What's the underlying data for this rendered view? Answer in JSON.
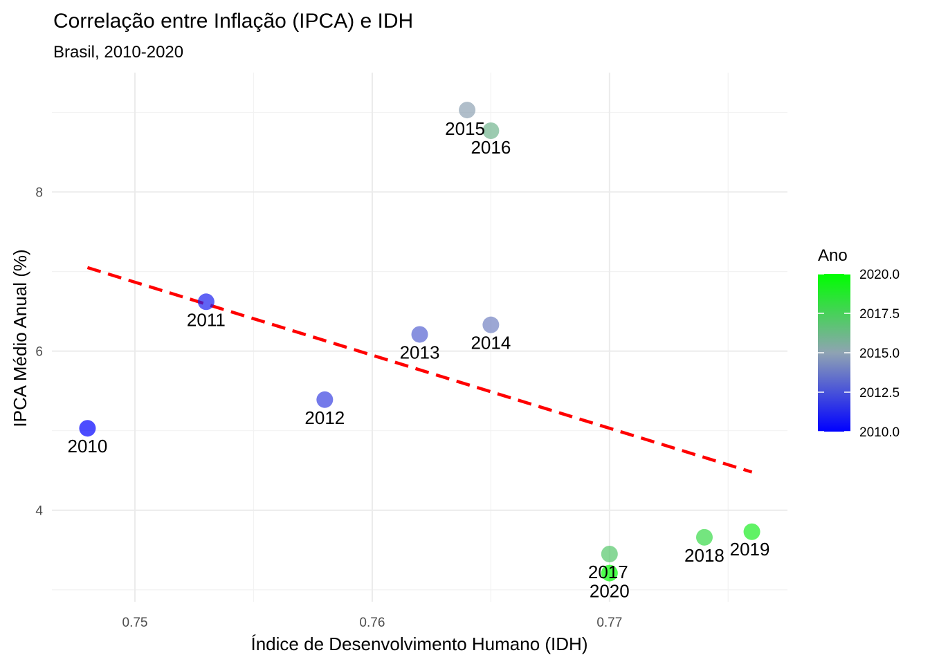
{
  "chart_data": {
    "type": "scatter",
    "title": "Correlação entre Inflação (IPCA) e IDH",
    "subtitle": "Brasil, 2010-2020",
    "xlabel": "Índice de Desenvolvimento Humano (IDH)",
    "ylabel": "IPCA Médio Anual (%)",
    "xlim": [
      0.7465,
      0.7775
    ],
    "ylim": [
      2.85,
      9.5
    ],
    "x_major_ticks": [
      0.75,
      0.76,
      0.77
    ],
    "x_tick_labels": [
      "0.75",
      "0.76",
      "0.77"
    ],
    "x_minor_ticks": [
      0.755,
      0.765,
      0.775
    ],
    "y_major_ticks": [
      4,
      6,
      8
    ],
    "y_tick_labels": [
      "4",
      "6",
      "8"
    ],
    "y_minor_ticks": [
      3,
      5,
      7,
      9
    ],
    "grid": true,
    "points": [
      {
        "year": 2010,
        "label": "2010",
        "x": 0.748,
        "y": 5.03
      },
      {
        "year": 2011,
        "label": "2011",
        "x": 0.753,
        "y": 6.62
      },
      {
        "year": 2012,
        "label": "2012",
        "x": 0.758,
        "y": 5.39
      },
      {
        "year": 2013,
        "label": "2013",
        "x": 0.762,
        "y": 6.21
      },
      {
        "year": 2014,
        "label": "2014",
        "x": 0.765,
        "y": 6.33
      },
      {
        "year": 2015,
        "label": "2015",
        "x": 0.764,
        "y": 9.03
      },
      {
        "year": 2016,
        "label": "2016",
        "x": 0.765,
        "y": 8.77
      },
      {
        "year": 2017,
        "label": "2017",
        "x": 0.77,
        "y": 3.45
      },
      {
        "year": 2018,
        "label": "2018",
        "x": 0.774,
        "y": 3.66
      },
      {
        "year": 2019,
        "label": "2019",
        "x": 0.776,
        "y": 3.73
      },
      {
        "year": 2020,
        "label": "2020",
        "x": 0.77,
        "y": 3.21
      }
    ],
    "trend_line": {
      "style": "dashed",
      "color": "#ff0000",
      "x": [
        0.748,
        0.776
      ],
      "y": [
        7.05,
        4.48
      ]
    },
    "legend": {
      "title": "Ano",
      "placement": "right",
      "range": [
        2010,
        2020
      ],
      "low_color": "#0000ff",
      "mid_color": "#8fa3b3",
      "high_color": "#00ff00",
      "ticks": [
        2010,
        2012.5,
        2015,
        2017.5,
        2020
      ],
      "tick_labels": [
        "2010.0",
        "2012.5",
        "2015.0",
        "2017.5",
        "2020.0"
      ]
    }
  }
}
